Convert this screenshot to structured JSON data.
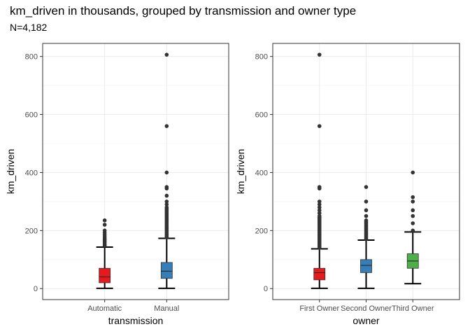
{
  "title": "km_driven in thousands, grouped by transmission and owner type",
  "subtitle": "N=4,182",
  "chart_data": [
    {
      "type": "box",
      "xlabel": "transmission",
      "ylabel": "km_driven",
      "ylim": [
        -38,
        845
      ],
      "yticks": [
        0,
        200,
        400,
        600,
        800
      ],
      "grid": true,
      "categories": [
        "Automatic",
        "Manual"
      ],
      "colors": [
        "#e41a1c",
        "#377eb8"
      ],
      "boxes": [
        {
          "min": 1,
          "q1": 20,
          "median": 40,
          "q3": 70,
          "max": 143
        },
        {
          "min": 1,
          "q1": 35,
          "median": 60,
          "q3": 90,
          "max": 173
        }
      ],
      "outliers": [
        [
          148,
          152,
          158,
          163,
          168,
          172,
          178,
          185,
          192,
          200,
          220,
          235
        ],
        [
          176,
          180,
          185,
          190,
          195,
          200,
          205,
          210,
          215,
          220,
          225,
          230,
          235,
          240,
          245,
          250,
          255,
          260,
          265,
          270,
          275,
          280,
          290,
          300,
          320,
          345,
          350,
          400,
          560,
          806
        ]
      ]
    },
    {
      "type": "box",
      "xlabel": "owner",
      "ylabel": "km_driven",
      "ylim": [
        -38,
        845
      ],
      "yticks": [
        0,
        200,
        400,
        600,
        800
      ],
      "grid": true,
      "categories": [
        "First Owner",
        "Second Owner",
        "Third Owner"
      ],
      "colors": [
        "#e41a1c",
        "#377eb8",
        "#4daf4a"
      ],
      "boxes": [
        {
          "min": 1,
          "q1": 30,
          "median": 55,
          "q3": 70,
          "max": 137
        },
        {
          "min": 1,
          "q1": 55,
          "median": 80,
          "q3": 100,
          "max": 167
        },
        {
          "min": 17,
          "q1": 70,
          "median": 95,
          "q3": 120,
          "max": 195
        }
      ],
      "outliers": [
        [
          140,
          145,
          150,
          155,
          160,
          165,
          170,
          175,
          180,
          185,
          190,
          195,
          200,
          205,
          210,
          215,
          220,
          225,
          230,
          235,
          240,
          245,
          250,
          260,
          270,
          280,
          290,
          300,
          345,
          350,
          560,
          806
        ],
        [
          170,
          175,
          180,
          185,
          190,
          195,
          200,
          205,
          210,
          215,
          220,
          225,
          230,
          235,
          250,
          270,
          300,
          350
        ],
        [
          200,
          225,
          250,
          270,
          300,
          315,
          400
        ]
      ]
    }
  ]
}
